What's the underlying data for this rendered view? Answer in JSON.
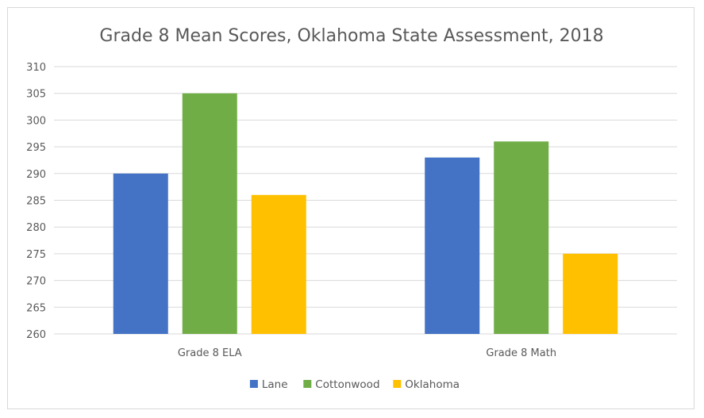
{
  "chart_data": {
    "type": "bar",
    "title": "Grade 8 Mean Scores, Oklahoma State Assessment, 2018",
    "categories": [
      "Grade 8 ELA",
      "Grade 8 Math"
    ],
    "series": [
      {
        "name": "Lane",
        "color": "#4472c4",
        "values": [
          290,
          293
        ]
      },
      {
        "name": "Cottonwood",
        "color": "#70ad47",
        "values": [
          305,
          296
        ]
      },
      {
        "name": "Oklahoma",
        "color": "#ffc000",
        "values": [
          286,
          275
        ]
      }
    ],
    "ylim": [
      260,
      310
    ],
    "yticks": [
      260,
      265,
      270,
      275,
      280,
      285,
      290,
      295,
      300,
      305,
      310
    ],
    "xlabel": "",
    "ylabel": "",
    "grid": true,
    "gridColor": "#d9d9d9",
    "legend": "bottom"
  }
}
